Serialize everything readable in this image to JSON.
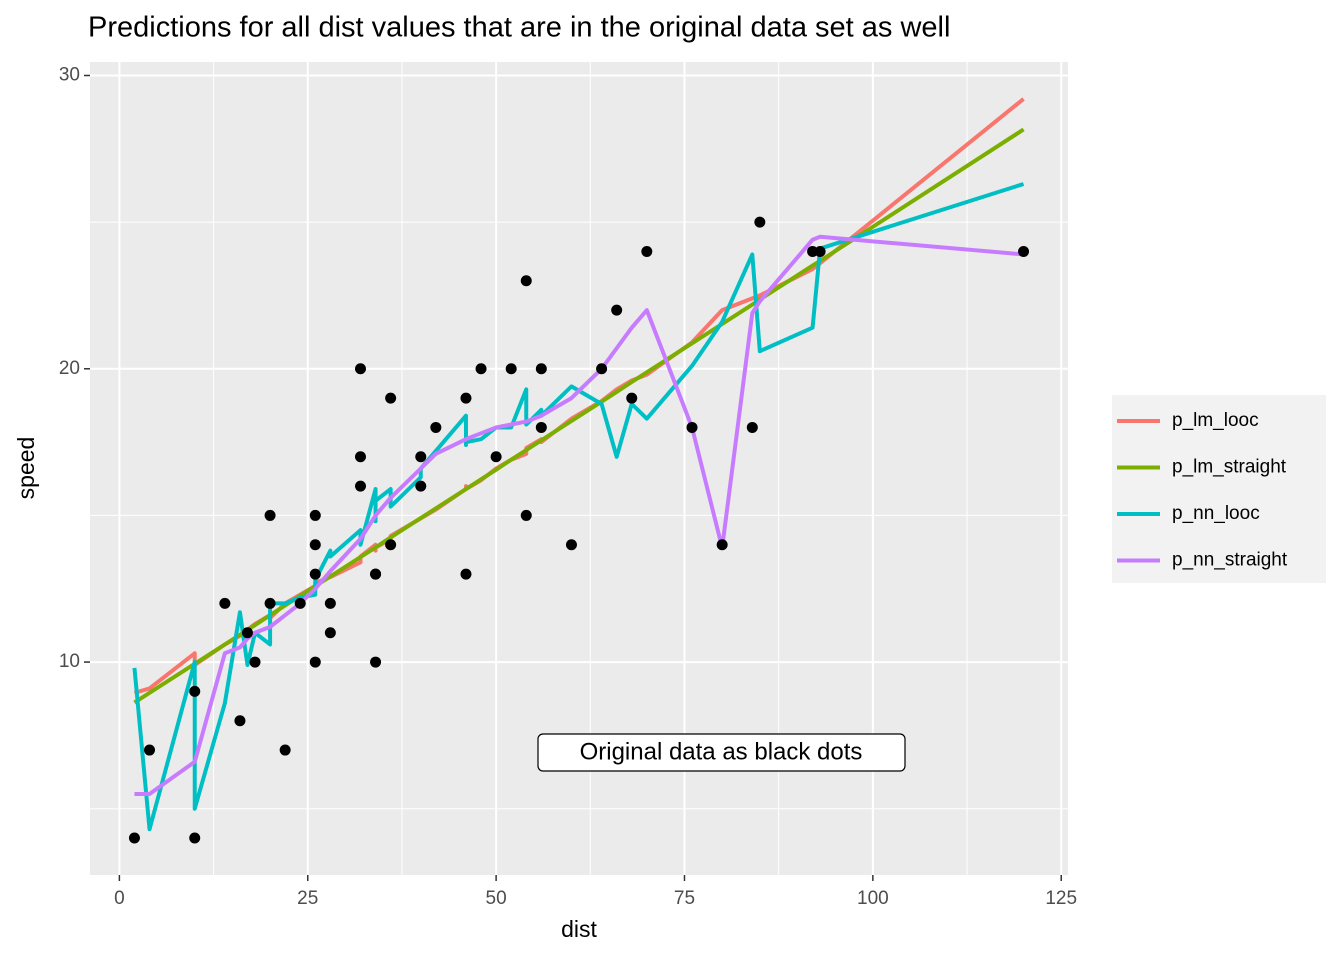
{
  "chart_data": {
    "type": "line",
    "title": "Predictions for all dist values that are in the original data set as well",
    "x_label": "dist",
    "y_label": "speed",
    "x": [
      2,
      4,
      10,
      10,
      14,
      16,
      17,
      18,
      20,
      20,
      22,
      24,
      26,
      26,
      26,
      26,
      28,
      28,
      32,
      32,
      34,
      34,
      34,
      36,
      36,
      40,
      40,
      42,
      46,
      46,
      46,
      48,
      50,
      52,
      54,
      54,
      56,
      56,
      60,
      64,
      66,
      68,
      70,
      76,
      80,
      84,
      85,
      92,
      93,
      120
    ],
    "series": [
      {
        "name": "p_lm_looc",
        "color": "#F8766D",
        "values": [
          8.95,
          9.1,
          10.3,
          9.9,
          10.6,
          10.9,
          11.1,
          11.3,
          11.6,
          11.5,
          12.0,
          12.3,
          12.6,
          12.5,
          12.6,
          12.7,
          12.9,
          12.9,
          13.4,
          13.6,
          14.0,
          13.8,
          13.9,
          14.2,
          14.3,
          14.9,
          14.9,
          15.2,
          15.9,
          16.0,
          15.9,
          16.2,
          16.6,
          16.9,
          17.1,
          17.3,
          17.6,
          17.5,
          18.3,
          18.9,
          19.3,
          19.6,
          19.8,
          20.9,
          22.0,
          22.4,
          22.5,
          23.4,
          23.6,
          29.2
        ]
      },
      {
        "name": "p_lm_straight",
        "color": "#7CAE00",
        "values": [
          8.62,
          8.95,
          9.94,
          9.94,
          10.6,
          10.93,
          11.1,
          11.26,
          11.6,
          11.6,
          11.93,
          12.26,
          12.59,
          12.59,
          12.59,
          12.59,
          12.92,
          12.92,
          13.58,
          13.58,
          13.91,
          13.91,
          13.91,
          14.25,
          14.25,
          14.91,
          14.91,
          15.24,
          15.9,
          15.9,
          15.9,
          16.23,
          16.56,
          16.9,
          17.23,
          17.23,
          17.56,
          17.56,
          18.22,
          18.88,
          19.21,
          19.55,
          19.88,
          20.87,
          21.53,
          22.19,
          22.36,
          23.52,
          23.68,
          28.16
        ]
      },
      {
        "name": "p_nn_looc",
        "color": "#00BFC4",
        "values": [
          9.8,
          4.3,
          10.0,
          5.0,
          8.6,
          11.7,
          9.9,
          11.0,
          10.6,
          12.0,
          12.0,
          12.2,
          12.3,
          13.0,
          12.5,
          12.8,
          13.8,
          13.6,
          14.5,
          14.0,
          15.9,
          14.8,
          15.5,
          15.9,
          15.3,
          16.3,
          16.6,
          17.2,
          18.4,
          17.4,
          17.5,
          17.6,
          18.0,
          18.0,
          19.3,
          18.1,
          18.6,
          18.4,
          19.4,
          18.8,
          17.0,
          18.8,
          18.3,
          20.1,
          21.6,
          23.9,
          20.6,
          21.4,
          24.1,
          26.3
        ]
      },
      {
        "name": "p_nn_straight",
        "color": "#C77CFF",
        "values": [
          5.5,
          5.5,
          6.6,
          6.6,
          10.3,
          10.5,
          10.8,
          11.0,
          11.2,
          11.2,
          11.6,
          12.0,
          12.5,
          12.5,
          12.5,
          12.5,
          13.1,
          13.1,
          14.2,
          14.2,
          15.0,
          15.0,
          15.0,
          15.6,
          15.6,
          16.6,
          16.6,
          17.1,
          17.6,
          17.6,
          17.6,
          17.8,
          18.0,
          18.1,
          18.2,
          18.2,
          18.4,
          18.4,
          19.0,
          20.0,
          20.7,
          21.4,
          22.0,
          18.0,
          13.9,
          21.9,
          22.3,
          24.4,
          24.5,
          23.9
        ]
      }
    ],
    "scatter": {
      "color": "#000000",
      "x": [
        2,
        10,
        4,
        22,
        16,
        10,
        18,
        26,
        34,
        17,
        28,
        14,
        20,
        24,
        28,
        26,
        34,
        34,
        46,
        26,
        36,
        60,
        80,
        20,
        26,
        54,
        32,
        40,
        32,
        40,
        50,
        42,
        56,
        76,
        84,
        36,
        46,
        68,
        32,
        48,
        52,
        56,
        64,
        66,
        54,
        70,
        92,
        93,
        120,
        85
      ],
      "y": [
        4,
        4,
        7,
        7,
        8,
        9,
        10,
        10,
        10,
        11,
        11,
        12,
        12,
        12,
        12,
        13,
        13,
        13,
        13,
        14,
        14,
        14,
        14,
        15,
        15,
        15,
        16,
        16,
        17,
        17,
        17,
        18,
        18,
        18,
        18,
        19,
        19,
        19,
        20,
        20,
        20,
        20,
        20,
        22,
        23,
        24,
        24,
        24,
        24,
        25
      ]
    },
    "annotation": "Original data as black dots",
    "xlim": [
      -3.9,
      125.9
    ],
    "ylim": [
      2.74,
      30.46
    ],
    "xticks": [
      0,
      25,
      50,
      75,
      100,
      125
    ],
    "yticks": [
      10,
      20,
      30
    ],
    "grid": true,
    "minor_grid": true,
    "legend": "right"
  }
}
